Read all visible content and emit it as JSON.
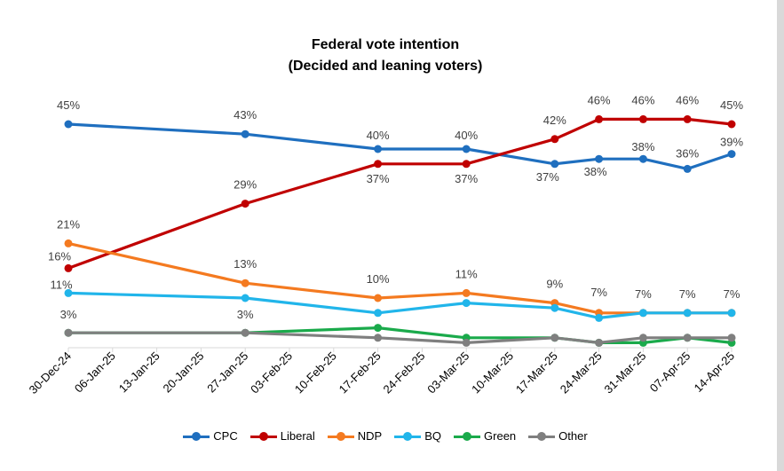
{
  "chart_data": {
    "type": "line",
    "title": "Federal vote intention",
    "subtitle": "(Decided and leaning voters)",
    "xlabel": "",
    "ylabel": "",
    "ylim": [
      0,
      50
    ],
    "grid": false,
    "legend_position": "bottom",
    "x_ticks": [
      "30-Dec-24",
      "06-Jan-25",
      "13-Jan-25",
      "20-Jan-25",
      "27-Jan-25",
      "03-Feb-25",
      "10-Feb-25",
      "17-Feb-25",
      "24-Feb-25",
      "03-Mar-25",
      "10-Mar-25",
      "17-Mar-25",
      "24-Mar-25",
      "31-Mar-25",
      "07-Apr-25",
      "14-Apr-25"
    ],
    "series": [
      {
        "name": "CPC",
        "color": "#1f6fbf",
        "points": [
          {
            "x": "2024-12-30",
            "y": 45,
            "label": "45%"
          },
          {
            "x": "2025-01-27",
            "y": 43,
            "label": "43%"
          },
          {
            "x": "2025-02-17",
            "y": 40,
            "label": "40%"
          },
          {
            "x": "2025-03-03",
            "y": 40,
            "label": "40%"
          },
          {
            "x": "2025-03-17",
            "y": 37,
            "label": "37%"
          },
          {
            "x": "2025-03-24",
            "y": 38,
            "label": "38%"
          },
          {
            "x": "2025-03-31",
            "y": 38,
            "label": "38%"
          },
          {
            "x": "2025-04-07",
            "y": 36,
            "label": "36%"
          },
          {
            "x": "2025-04-14",
            "y": 39,
            "label": "39%"
          }
        ]
      },
      {
        "name": "Liberal",
        "color": "#c00000",
        "points": [
          {
            "x": "2024-12-30",
            "y": 16,
            "label": "16%"
          },
          {
            "x": "2025-01-27",
            "y": 29,
            "label": "29%"
          },
          {
            "x": "2025-02-17",
            "y": 37,
            "label": "37%"
          },
          {
            "x": "2025-03-03",
            "y": 37,
            "label": "37%"
          },
          {
            "x": "2025-03-17",
            "y": 42,
            "label": "42%"
          },
          {
            "x": "2025-03-24",
            "y": 46,
            "label": "46%"
          },
          {
            "x": "2025-03-31",
            "y": 46,
            "label": "46%"
          },
          {
            "x": "2025-04-07",
            "y": 46,
            "label": "46%"
          },
          {
            "x": "2025-04-14",
            "y": 45,
            "label": "45%"
          }
        ]
      },
      {
        "name": "NDP",
        "color": "#f47a20",
        "points": [
          {
            "x": "2024-12-30",
            "y": 21,
            "label": "21%"
          },
          {
            "x": "2025-01-27",
            "y": 13,
            "label": "13%"
          },
          {
            "x": "2025-02-17",
            "y": 10,
            "label": "10%"
          },
          {
            "x": "2025-03-03",
            "y": 11,
            "label": "11%"
          },
          {
            "x": "2025-03-17",
            "y": 9,
            "label": "9%"
          },
          {
            "x": "2025-03-24",
            "y": 7,
            "label": "7%"
          },
          {
            "x": "2025-03-31",
            "y": 7,
            "label": "7%"
          },
          {
            "x": "2025-04-07",
            "y": 7,
            "label": "7%"
          },
          {
            "x": "2025-04-14",
            "y": 7,
            "label": "7%"
          }
        ]
      },
      {
        "name": "BQ",
        "color": "#21b5ea",
        "points": [
          {
            "x": "2024-12-30",
            "y": 11,
            "label": "11%"
          },
          {
            "x": "2025-01-27",
            "y": 10
          },
          {
            "x": "2025-02-17",
            "y": 7
          },
          {
            "x": "2025-03-03",
            "y": 9
          },
          {
            "x": "2025-03-17",
            "y": 8
          },
          {
            "x": "2025-03-24",
            "y": 6
          },
          {
            "x": "2025-03-31",
            "y": 7
          },
          {
            "x": "2025-04-07",
            "y": 7
          },
          {
            "x": "2025-04-14",
            "y": 7
          }
        ]
      },
      {
        "name": "Green",
        "color": "#1aaa4b",
        "points": [
          {
            "x": "2024-12-30",
            "y": 3
          },
          {
            "x": "2025-01-27",
            "y": 3
          },
          {
            "x": "2025-02-17",
            "y": 4
          },
          {
            "x": "2025-03-03",
            "y": 2
          },
          {
            "x": "2025-03-17",
            "y": 2
          },
          {
            "x": "2025-03-24",
            "y": 1
          },
          {
            "x": "2025-03-31",
            "y": 1
          },
          {
            "x": "2025-04-07",
            "y": 2
          },
          {
            "x": "2025-04-14",
            "y": 1
          }
        ]
      },
      {
        "name": "Other",
        "color": "#7f7f7f",
        "points": [
          {
            "x": "2024-12-30",
            "y": 3,
            "label": "3%"
          },
          {
            "x": "2025-01-27",
            "y": 3,
            "label": "3%"
          },
          {
            "x": "2025-02-17",
            "y": 2
          },
          {
            "x": "2025-03-03",
            "y": 1
          },
          {
            "x": "2025-03-17",
            "y": 2
          },
          {
            "x": "2025-03-24",
            "y": 1
          },
          {
            "x": "2025-03-31",
            "y": 2
          },
          {
            "x": "2025-04-07",
            "y": 2
          },
          {
            "x": "2025-04-14",
            "y": 2
          }
        ]
      }
    ]
  }
}
